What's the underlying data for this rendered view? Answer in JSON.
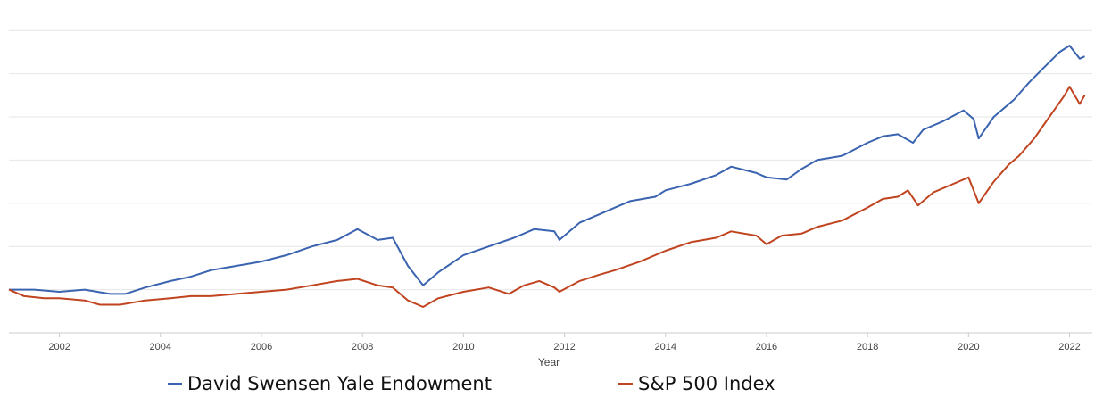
{
  "chart_data": {
    "type": "line",
    "xlabel": "Year",
    "x_ticks": [
      "2002",
      "2004",
      "2006",
      "2008",
      "2010",
      "2012",
      "2014",
      "2016",
      "2018",
      "2020",
      "2022"
    ],
    "xlim": [
      2001.0,
      2022.45
    ],
    "grid": true,
    "legend_position": "bottom",
    "series": [
      {
        "name": "David Swensen Yale Endowment",
        "color": "#3a63b0",
        "points": [
          [
            2001.0,
            100
          ],
          [
            2001.5,
            100
          ],
          [
            2002.0,
            99
          ],
          [
            2002.5,
            100
          ],
          [
            2003.0,
            98
          ],
          [
            2003.3,
            98
          ],
          [
            2003.7,
            101
          ],
          [
            2004.2,
            104
          ],
          [
            2004.6,
            106
          ],
          [
            2005.0,
            109
          ],
          [
            2005.5,
            111
          ],
          [
            2006.0,
            113
          ],
          [
            2006.5,
            116
          ],
          [
            2007.0,
            120
          ],
          [
            2007.5,
            123
          ],
          [
            2007.9,
            128
          ],
          [
            2008.3,
            123
          ],
          [
            2008.6,
            124
          ],
          [
            2008.9,
            111
          ],
          [
            2009.2,
            102
          ],
          [
            2009.5,
            108
          ],
          [
            2010.0,
            116
          ],
          [
            2010.5,
            120
          ],
          [
            2011.0,
            124
          ],
          [
            2011.4,
            128
          ],
          [
            2011.8,
            127
          ],
          [
            2011.9,
            123
          ],
          [
            2012.3,
            131
          ],
          [
            2012.7,
            135
          ],
          [
            2013.0,
            138
          ],
          [
            2013.3,
            141
          ],
          [
            2013.8,
            143
          ],
          [
            2014.0,
            146
          ],
          [
            2014.5,
            149
          ],
          [
            2015.0,
            153
          ],
          [
            2015.3,
            157
          ],
          [
            2015.8,
            154
          ],
          [
            2016.0,
            152
          ],
          [
            2016.4,
            151
          ],
          [
            2016.7,
            156
          ],
          [
            2017.0,
            160
          ],
          [
            2017.5,
            162
          ],
          [
            2018.0,
            168
          ],
          [
            2018.3,
            171
          ],
          [
            2018.6,
            172
          ],
          [
            2018.9,
            168
          ],
          [
            2019.1,
            174
          ],
          [
            2019.5,
            178
          ],
          [
            2019.9,
            183
          ],
          [
            2020.1,
            179
          ],
          [
            2020.2,
            170
          ],
          [
            2020.5,
            180
          ],
          [
            2020.9,
            188
          ],
          [
            2021.2,
            196
          ],
          [
            2021.5,
            203
          ],
          [
            2021.8,
            210
          ],
          [
            2022.0,
            213
          ],
          [
            2022.2,
            207
          ],
          [
            2022.3,
            208
          ]
        ]
      },
      {
        "name": "S&P 500 Index",
        "color": "#c0441f",
        "points": [
          [
            2001.0,
            100
          ],
          [
            2001.3,
            97
          ],
          [
            2001.7,
            96
          ],
          [
            2002.0,
            96
          ],
          [
            2002.5,
            95
          ],
          [
            2002.8,
            93
          ],
          [
            2003.2,
            93
          ],
          [
            2003.7,
            95
          ],
          [
            2004.2,
            96
          ],
          [
            2004.6,
            97
          ],
          [
            2005.0,
            97
          ],
          [
            2005.5,
            98
          ],
          [
            2006.0,
            99
          ],
          [
            2006.5,
            100
          ],
          [
            2007.0,
            102
          ],
          [
            2007.5,
            104
          ],
          [
            2007.9,
            105
          ],
          [
            2008.3,
            102
          ],
          [
            2008.6,
            101
          ],
          [
            2008.9,
            95
          ],
          [
            2009.2,
            92
          ],
          [
            2009.5,
            96
          ],
          [
            2010.0,
            99
          ],
          [
            2010.5,
            101
          ],
          [
            2010.9,
            98
          ],
          [
            2011.2,
            102
          ],
          [
            2011.5,
            104
          ],
          [
            2011.8,
            101
          ],
          [
            2011.9,
            99
          ],
          [
            2012.3,
            104
          ],
          [
            2012.7,
            107
          ],
          [
            2013.0,
            109
          ],
          [
            2013.5,
            113
          ],
          [
            2014.0,
            118
          ],
          [
            2014.5,
            122
          ],
          [
            2015.0,
            124
          ],
          [
            2015.3,
            127
          ],
          [
            2015.8,
            125
          ],
          [
            2016.0,
            121
          ],
          [
            2016.3,
            125
          ],
          [
            2016.7,
            126
          ],
          [
            2017.0,
            129
          ],
          [
            2017.5,
            132
          ],
          [
            2018.0,
            138
          ],
          [
            2018.3,
            142
          ],
          [
            2018.6,
            143
          ],
          [
            2018.8,
            146
          ],
          [
            2019.0,
            139
          ],
          [
            2019.3,
            145
          ],
          [
            2019.7,
            149
          ],
          [
            2020.0,
            152
          ],
          [
            2020.2,
            140
          ],
          [
            2020.5,
            150
          ],
          [
            2020.8,
            158
          ],
          [
            2021.0,
            162
          ],
          [
            2021.3,
            170
          ],
          [
            2021.6,
            180
          ],
          [
            2021.9,
            190
          ],
          [
            2022.0,
            194
          ],
          [
            2022.2,
            186
          ],
          [
            2022.3,
            190
          ]
        ]
      }
    ]
  }
}
